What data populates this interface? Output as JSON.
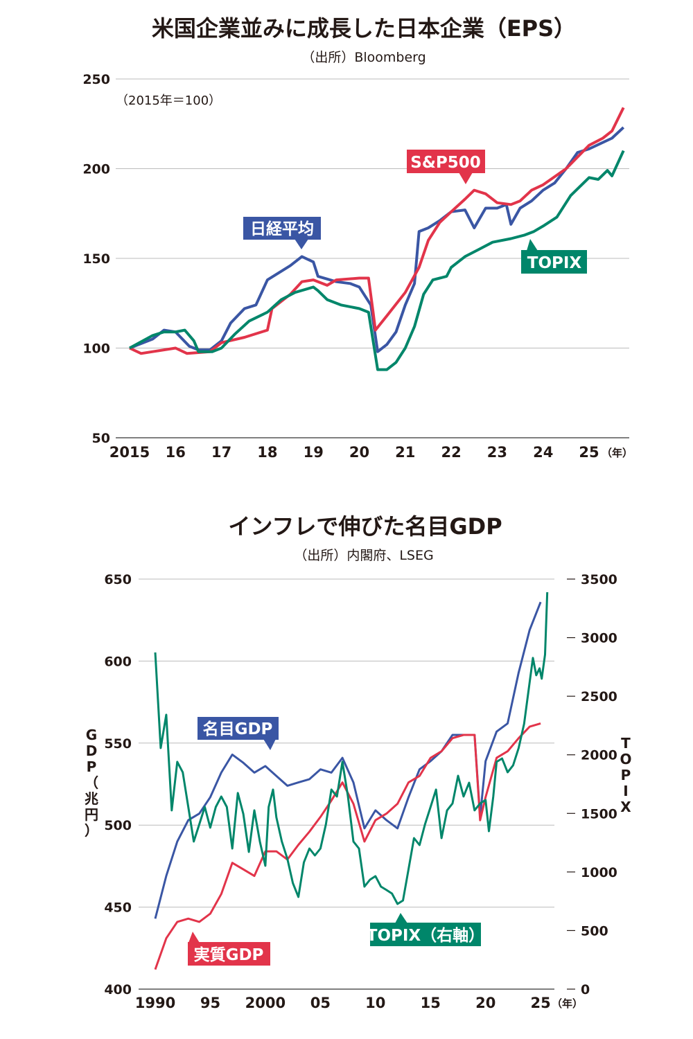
{
  "colors": {
    "nikkei": "#3a56a4",
    "sp500": "#e2344a",
    "topix": "#00866a",
    "nominal_gdp": "#3a56a4",
    "real_gdp": "#e2344a"
  },
  "chart_data": [
    {
      "type": "line",
      "title": "米国企業並みに成長した日本企業（EPS）",
      "subtitle": "（出所）Bloomberg",
      "note": "（2015年＝100）",
      "ylim": [
        50,
        250
      ],
      "yticks": [
        50,
        100,
        150,
        200,
        250
      ],
      "xlim": [
        2015,
        2025.9
      ],
      "xticks": [
        2015,
        2016,
        2017,
        2018,
        2019,
        2020,
        2021,
        2022,
        2023,
        2024,
        2025
      ],
      "xtick_labels": [
        "2015",
        "16",
        "17",
        "18",
        "19",
        "20",
        "21",
        "22",
        "23",
        "24",
        "25"
      ],
      "xunit": "（年）",
      "grid": true,
      "series": [
        {
          "name": "日経平均",
          "color": "#3a56a4",
          "x": [
            2015,
            2015.5,
            2015.75,
            2016,
            2016.3,
            2016.5,
            2016.75,
            2017,
            2017.2,
            2017.5,
            2017.75,
            2018,
            2018.5,
            2018.75,
            2019,
            2019.1,
            2019.5,
            2019.8,
            2020,
            2020.25,
            2020.4,
            2020.6,
            2020.8,
            2021,
            2021.2,
            2021.3,
            2021.5,
            2021.75,
            2022,
            2022.3,
            2022.5,
            2022.75,
            2023,
            2023.2,
            2023.3,
            2023.5,
            2023.75,
            2024,
            2024.25,
            2024.5,
            2024.75,
            2025,
            2025.25,
            2025.5,
            2025.75
          ],
          "y": [
            100,
            105,
            110,
            109,
            101,
            99,
            99,
            104,
            114,
            122,
            124,
            138,
            146,
            151,
            148,
            140,
            137,
            136,
            134,
            124,
            98,
            102,
            109,
            124,
            136,
            165,
            167,
            171,
            176,
            177,
            167,
            178,
            178,
            180,
            169,
            178,
            182,
            188,
            192,
            200,
            209,
            211,
            214,
            217,
            223
          ]
        },
        {
          "name": "S&P500",
          "color": "#e2344a",
          "x": [
            2015,
            2015.25,
            2015.5,
            2016,
            2016.25,
            2016.75,
            2017,
            2017.5,
            2018,
            2018.1,
            2018.5,
            2018.75,
            2019,
            2019.3,
            2019.5,
            2020,
            2020.2,
            2020.3,
            2020.35,
            2020.6,
            2021,
            2021.3,
            2021.5,
            2021.75,
            2022,
            2022.3,
            2022.5,
            2022.75,
            2023,
            2023.3,
            2023.5,
            2023.75,
            2024,
            2024.5,
            2025,
            2025.3,
            2025.5,
            2025.75
          ],
          "y": [
            100,
            97,
            98,
            100,
            97,
            98,
            103,
            106,
            110,
            122,
            130,
            137,
            138,
            135,
            138,
            139,
            139,
            120,
            110,
            118,
            131,
            145,
            160,
            170,
            176,
            183,
            188,
            186,
            181,
            180,
            182,
            188,
            191,
            200,
            213,
            217,
            221,
            234
          ]
        },
        {
          "name": "TOPIX",
          "color": "#00866a",
          "x": [
            2015,
            2015.5,
            2015.75,
            2016,
            2016.2,
            2016.4,
            2016.5,
            2016.8,
            2017,
            2017.3,
            2017.6,
            2018,
            2018.3,
            2018.6,
            2019,
            2019.1,
            2019.3,
            2019.6,
            2020,
            2020.2,
            2020.3,
            2020.4,
            2020.6,
            2020.8,
            2021,
            2021.2,
            2021.4,
            2021.6,
            2021.9,
            2022,
            2022.3,
            2022.6,
            2022.9,
            2023.3,
            2023.6,
            2023.8,
            2024,
            2024.3,
            2024.6,
            2025,
            2025.2,
            2025.4,
            2025.5,
            2025.75
          ],
          "y": [
            100,
            107,
            109,
            109,
            110,
            104,
            98,
            98,
            100,
            108,
            115,
            120,
            127,
            131,
            134,
            132,
            127,
            124,
            122,
            120,
            104,
            88,
            88,
            92,
            100,
            112,
            130,
            138,
            140,
            145,
            151,
            155,
            159,
            161,
            163,
            165,
            168,
            173,
            185,
            195,
            194,
            199,
            196,
            210
          ]
        }
      ]
    },
    {
      "type": "line",
      "title": "インフレで伸びた名目GDP",
      "subtitle": "（出所）内閣府、LSEG",
      "ylabel": "GDP（兆円）",
      "y2label": "TOPIX",
      "ylim": [
        400,
        650
      ],
      "yticks": [
        400,
        450,
        500,
        550,
        600,
        650
      ],
      "y2lim": [
        0,
        3500
      ],
      "y2ticks": [
        0,
        500,
        1000,
        1500,
        2000,
        2500,
        3000,
        3500
      ],
      "xlim": [
        1990,
        2025.9
      ],
      "xticks": [
        1990,
        1995,
        2000,
        2005,
        2010,
        2015,
        2020,
        2025
      ],
      "xtick_labels": [
        "1990",
        "95",
        "2000",
        "05",
        "10",
        "15",
        "20",
        "25"
      ],
      "xunit": "（年）",
      "grid": true,
      "series": [
        {
          "name": "名目GDP",
          "axis": "left",
          "color": "#3a56a4",
          "x": [
            1990,
            1991,
            1992,
            1993,
            1994,
            1995,
            1996,
            1997,
            1998,
            1999,
            2000,
            2001,
            2002,
            2003,
            2004,
            2005,
            2006,
            2007,
            2008,
            2009,
            2010,
            2011,
            2012,
            2013,
            2014,
            2015,
            2016,
            2017,
            2018,
            2019,
            2019.5,
            2020,
            2021,
            2022,
            2023,
            2024,
            2025
          ],
          "y": [
            443,
            469,
            490,
            503,
            507,
            517,
            532,
            543,
            538,
            532,
            536,
            530,
            524,
            526,
            528,
            534,
            532,
            541,
            526,
            498,
            509,
            503,
            498,
            517,
            534,
            539,
            545,
            555,
            555,
            555,
            505,
            539,
            557,
            562,
            593,
            619,
            636
          ]
        },
        {
          "name": "実質GDP",
          "axis": "left",
          "color": "#e2344a",
          "x": [
            1990,
            1991,
            1992,
            1993,
            1994,
            1995,
            1996,
            1997,
            1998,
            1999,
            2000,
            2001,
            2002,
            2003,
            2004,
            2005,
            2006,
            2007,
            2008,
            2009,
            2010,
            2011,
            2012,
            2013,
            2014,
            2015,
            2016,
            2017,
            2018,
            2019,
            2019.5,
            2020,
            2021,
            2022,
            2023,
            2024,
            2025
          ],
          "y": [
            412,
            431,
            441,
            443,
            441,
            446,
            458,
            477,
            473,
            469,
            484,
            484,
            479,
            488,
            496,
            505,
            515,
            526,
            513,
            490,
            503,
            507,
            513,
            526,
            530,
            541,
            545,
            553,
            555,
            555,
            503,
            517,
            541,
            545,
            553,
            560,
            562
          ]
        },
        {
          "name": "TOPIX（右軸）",
          "axis": "right",
          "color": "#00866a",
          "x": [
            1990,
            1990.5,
            1991,
            1991.5,
            1992,
            1992.5,
            1993,
            1993.5,
            1994,
            1994.5,
            1995,
            1995.5,
            1996,
            1996.5,
            1997,
            1997.5,
            1998,
            1998.5,
            1999,
            1999.5,
            2000,
            2000.3,
            2000.7,
            2001,
            2001.5,
            2002,
            2002.5,
            2003,
            2003.5,
            2004,
            2004.5,
            2005,
            2005.5,
            2006,
            2006.5,
            2007,
            2007.5,
            2008,
            2008.5,
            2009,
            2009.5,
            2010,
            2010.5,
            2011,
            2011.5,
            2012,
            2012.5,
            2013,
            2013.5,
            2014,
            2014.5,
            2015,
            2015.5,
            2016,
            2016.5,
            2017,
            2017.5,
            2018,
            2018.5,
            2019,
            2019.5,
            2020,
            2020.3,
            2020.7,
            2021,
            2021.5,
            2022,
            2022.5,
            2023,
            2023.5,
            2024,
            2024.3,
            2024.6,
            2024.9,
            2025.1,
            2025.4,
            2025.6
          ],
          "y": [
            2874,
            2058,
            2342,
            1526,
            1940,
            1851,
            1555,
            1260,
            1407,
            1555,
            1378,
            1555,
            1644,
            1555,
            1200,
            1674,
            1496,
            1171,
            1526,
            1260,
            1053,
            1555,
            1703,
            1467,
            1260,
            1112,
            905,
            787,
            1082,
            1200,
            1141,
            1200,
            1407,
            1703,
            1644,
            1940,
            1644,
            1260,
            1200,
            875,
            934,
            964,
            875,
            846,
            816,
            727,
            757,
            1023,
            1289,
            1230,
            1407,
            1555,
            1703,
            1289,
            1526,
            1585,
            1821,
            1644,
            1762,
            1526,
            1585,
            1614,
            1348,
            1644,
            1940,
            1969,
            1851,
            1910,
            2058,
            2265,
            2620,
            2827,
            2679,
            2738,
            2650,
            2856,
            3388
          ]
        }
      ]
    }
  ]
}
